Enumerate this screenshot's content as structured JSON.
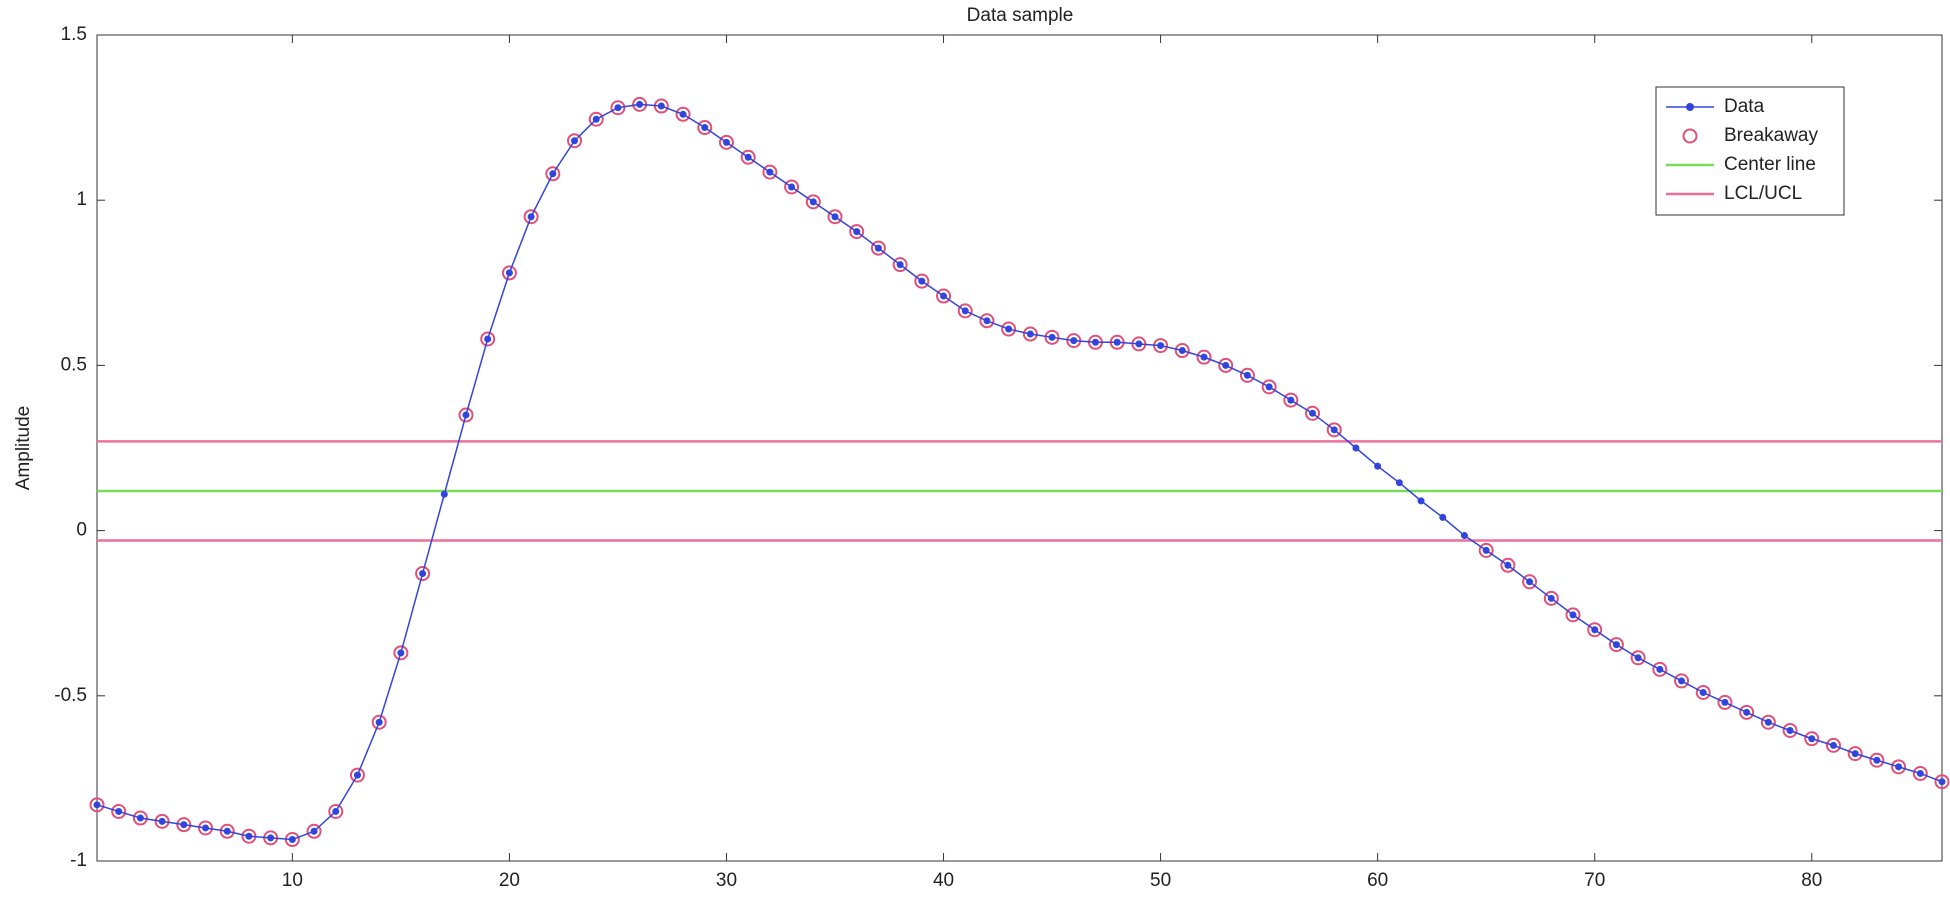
{
  "chart_data": {
    "type": "line",
    "title": "Data sample",
    "y_label": "Amplitude",
    "x": [
      1,
      2,
      3,
      4,
      5,
      6,
      7,
      8,
      9,
      10,
      11,
      12,
      13,
      14,
      15,
      16,
      17,
      18,
      19,
      20,
      21,
      22,
      23,
      24,
      25,
      26,
      27,
      28,
      29,
      30,
      31,
      32,
      33,
      34,
      35,
      36,
      37,
      38,
      39,
      40,
      41,
      42,
      43,
      44,
      45,
      46,
      47,
      48,
      49,
      50,
      51,
      52,
      53,
      54,
      55,
      56,
      57,
      58,
      59,
      60,
      61,
      62,
      63,
      64,
      65,
      66,
      67,
      68,
      69,
      70,
      71,
      72,
      73,
      74,
      75,
      76,
      77,
      78,
      79,
      80,
      81,
      82,
      83,
      84,
      85,
      86
    ],
    "series": [
      {
        "name": "Data",
        "color": "#3344dd",
        "marker": "dot",
        "values": [
          -0.83,
          -0.85,
          -0.87,
          -0.88,
          -0.89,
          -0.9,
          -0.91,
          -0.925,
          -0.93,
          -0.935,
          -0.91,
          -0.85,
          -0.74,
          -0.58,
          -0.37,
          -0.13,
          0.11,
          0.35,
          0.58,
          0.78,
          0.95,
          1.08,
          1.18,
          1.245,
          1.28,
          1.29,
          1.285,
          1.26,
          1.22,
          1.175,
          1.13,
          1.085,
          1.04,
          0.995,
          0.95,
          0.905,
          0.855,
          0.805,
          0.755,
          0.71,
          0.665,
          0.635,
          0.61,
          0.595,
          0.585,
          0.575,
          0.57,
          0.57,
          0.565,
          0.56,
          0.545,
          0.525,
          0.5,
          0.47,
          0.435,
          0.395,
          0.355,
          0.305,
          0.25,
          0.195,
          0.145,
          0.09,
          0.04,
          -0.015,
          -0.06,
          -0.105,
          -0.155,
          -0.205,
          -0.255,
          -0.3,
          -0.345,
          -0.385,
          -0.42,
          -0.455,
          -0.49,
          -0.52,
          -0.55,
          -0.58,
          -0.605,
          -0.63,
          -0.65,
          -0.675,
          -0.695,
          -0.715,
          -0.735,
          -0.76
        ]
      },
      {
        "name": "Breakaway",
        "color": "#e0507a",
        "marker": "ring",
        "values": [
          -0.83,
          -0.85,
          -0.87,
          -0.88,
          -0.89,
          -0.9,
          -0.91,
          -0.925,
          -0.93,
          -0.935,
          -0.91,
          -0.85,
          -0.74,
          -0.58,
          -0.37,
          -0.13,
          null,
          0.35,
          0.58,
          0.78,
          0.95,
          1.08,
          1.18,
          1.245,
          1.28,
          1.29,
          1.285,
          1.26,
          1.22,
          1.175,
          1.13,
          1.085,
          1.04,
          0.995,
          0.95,
          0.905,
          0.855,
          0.805,
          0.755,
          0.71,
          0.665,
          0.635,
          0.61,
          0.595,
          0.585,
          0.575,
          0.57,
          0.57,
          0.565,
          0.56,
          0.545,
          0.525,
          0.5,
          0.47,
          0.435,
          0.395,
          0.355,
          0.305,
          null,
          null,
          null,
          null,
          null,
          null,
          -0.06,
          -0.105,
          -0.155,
          -0.205,
          -0.255,
          -0.3,
          -0.345,
          -0.385,
          -0.42,
          -0.455,
          -0.49,
          -0.52,
          -0.55,
          -0.58,
          -0.605,
          -0.63,
          -0.65,
          -0.675,
          -0.695,
          -0.715,
          -0.735,
          -0.76
        ]
      }
    ],
    "reference_lines": [
      {
        "name": "Center line",
        "color": "#77dd55",
        "values": [
          0.12
        ]
      },
      {
        "name": "LCL/UCL",
        "color": "#ee6f9a",
        "values": [
          -0.03,
          0.27
        ]
      }
    ],
    "xlim": [
      1,
      86
    ],
    "xticks": [
      10,
      20,
      30,
      40,
      50,
      60,
      70,
      80
    ],
    "ylim": [
      -1,
      1.5
    ],
    "yticks": [
      -1,
      -0.5,
      0,
      0.5,
      1,
      1.5
    ],
    "legend": "upper right"
  }
}
